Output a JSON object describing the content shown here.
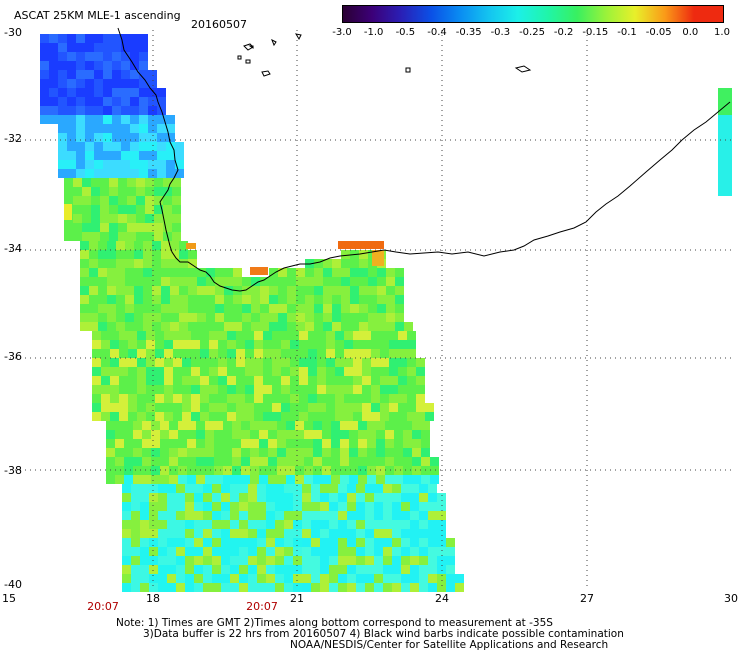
{
  "header": {
    "title": "ASCAT 25KM MLE-1 ascending",
    "date": "20160507"
  },
  "colorbar": {
    "ticks": [
      "-3.0",
      "-1.0",
      "-0.5",
      "-0.4",
      "-0.35",
      "-0.3",
      "-0.25",
      "-0.2",
      "-0.15",
      "-0.1",
      "-0.05",
      "0.0",
      "1.0"
    ],
    "colors": [
      "#2a0033",
      "#3c0078",
      "#2a1fb5",
      "#0b50e6",
      "#0a8cf2",
      "#14c4f0",
      "#1cf0e8",
      "#20f5a8",
      "#38f060",
      "#9af23a",
      "#e8f02a",
      "#fa9a18",
      "#ee2a10"
    ]
  },
  "axes": {
    "lat_labels": [
      "-30",
      "-32",
      "-34",
      "-36",
      "-38",
      "-40"
    ],
    "lon_labels": [
      "15",
      "18",
      "21",
      "24",
      "27",
      "30"
    ],
    "time_labels": [
      "20:07",
      "20:07"
    ]
  },
  "notes": {
    "line1": "Note: 1) Times are GMT 2)Times along bottom correspond to measurement at -35S",
    "line2": "3)Data buffer is 22 hrs from 20160507 4) Black wind barbs indicate possible contamination",
    "line3": "NOAA/NESDIS/Center for Satellite Applications and Research"
  }
}
